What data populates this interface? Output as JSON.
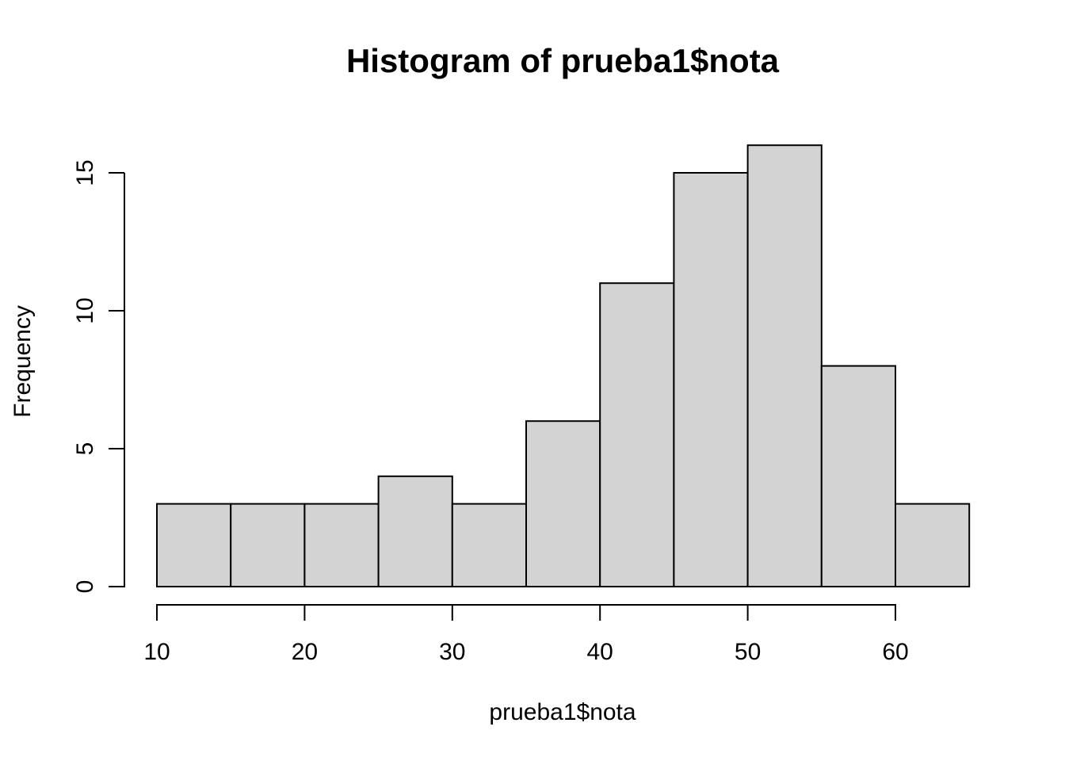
{
  "figure": {
    "background": "#ffffff"
  },
  "chart_data": {
    "type": "bar",
    "subtype": "histogram",
    "title": "Histogram of prueba1$nota",
    "xlabel": "prueba1$nota",
    "ylabel": "Frequency",
    "breaks": [
      10,
      15,
      20,
      25,
      30,
      35,
      40,
      45,
      50,
      55,
      60,
      65
    ],
    "counts": [
      3,
      3,
      3,
      4,
      3,
      6,
      11,
      15,
      16,
      8,
      3
    ],
    "x_ticks": [
      10,
      20,
      30,
      40,
      50,
      60
    ],
    "y_ticks": [
      0,
      5,
      10,
      15
    ],
    "xlim": [
      10,
      65
    ],
    "ylim": [
      0,
      16
    ],
    "grid": "off",
    "legend": "none",
    "bar_fill": "#D3D3D3",
    "bar_stroke": "#000000",
    "axis_color": "#000000",
    "text_color": "#000000"
  }
}
